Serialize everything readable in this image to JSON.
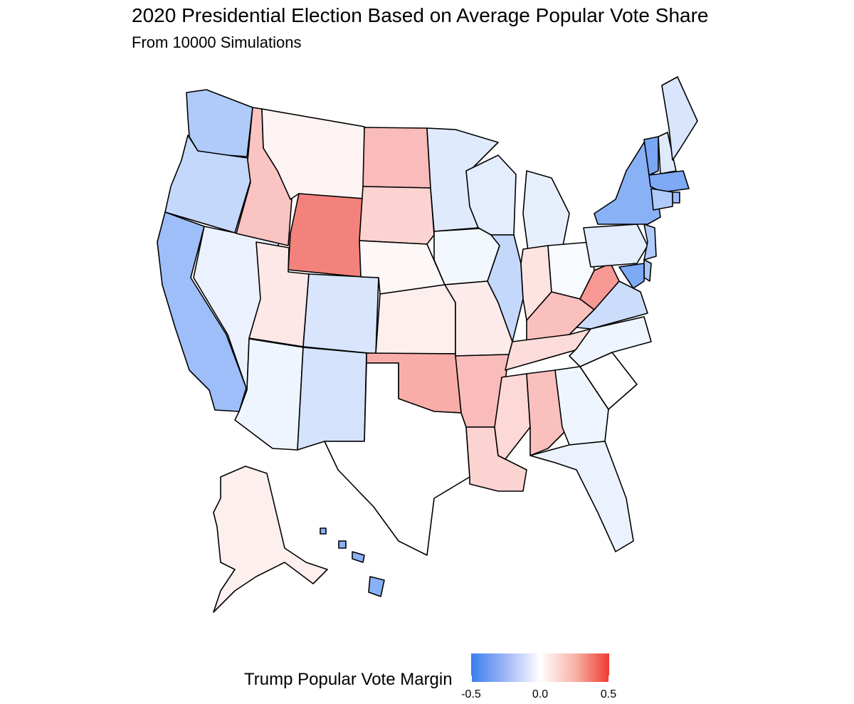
{
  "chart": {
    "title": "2020 Presidential Election Based on Average Popular Vote Share",
    "subtitle": "From 10000 Simulations"
  },
  "legend": {
    "title": "Trump Popular Vote Margin",
    "ticks": [
      "-0.5",
      "0.0",
      "0.5"
    ],
    "min_color": "#3a7df0",
    "mid_color": "#ffffff",
    "max_color": "#ee3b33"
  },
  "chart_data": {
    "type": "choropleth",
    "title": "2020 Presidential Election Based on Average Popular Vote Share",
    "subtitle": "From 10000 Simulations",
    "legend_title": "Trump Popular Vote Margin",
    "scale": {
      "min": -0.5,
      "mid": 0.0,
      "max": 0.5
    },
    "states": [
      {
        "state": "WA",
        "margin": -0.2
      },
      {
        "state": "OR",
        "margin": -0.15
      },
      {
        "state": "CA",
        "margin": -0.25
      },
      {
        "state": "NV",
        "margin": -0.05
      },
      {
        "state": "ID",
        "margin": 0.15
      },
      {
        "state": "MT",
        "margin": 0.03
      },
      {
        "state": "WY",
        "margin": 0.32
      },
      {
        "state": "UT",
        "margin": 0.06
      },
      {
        "state": "AZ",
        "margin": -0.04
      },
      {
        "state": "CO",
        "margin": -0.1
      },
      {
        "state": "NM",
        "margin": -0.11
      },
      {
        "state": "ND",
        "margin": 0.17
      },
      {
        "state": "SD",
        "margin": 0.11
      },
      {
        "state": "NE",
        "margin": 0.02
      },
      {
        "state": "KS",
        "margin": 0.04
      },
      {
        "state": "OK",
        "margin": 0.21
      },
      {
        "state": "TX",
        "margin": 0.0
      },
      {
        "state": "MN",
        "margin": -0.08
      },
      {
        "state": "IA",
        "margin": -0.03
      },
      {
        "state": "MO",
        "margin": 0.05
      },
      {
        "state": "AR",
        "margin": 0.17
      },
      {
        "state": "LA",
        "margin": 0.11
      },
      {
        "state": "WI",
        "margin": -0.07
      },
      {
        "state": "IL",
        "margin": -0.15
      },
      {
        "state": "MI",
        "margin": -0.06
      },
      {
        "state": "IN",
        "margin": 0.07
      },
      {
        "state": "OH",
        "margin": -0.02
      },
      {
        "state": "KY",
        "margin": 0.16
      },
      {
        "state": "TN",
        "margin": 0.09
      },
      {
        "state": "MS",
        "margin": 0.1
      },
      {
        "state": "AL",
        "margin": 0.16
      },
      {
        "state": "GA",
        "margin": -0.04
      },
      {
        "state": "FL",
        "margin": -0.05
      },
      {
        "state": "SC",
        "margin": 0.0
      },
      {
        "state": "NC",
        "margin": -0.04
      },
      {
        "state": "VA",
        "margin": -0.13
      },
      {
        "state": "WV",
        "margin": 0.26
      },
      {
        "state": "PA",
        "margin": -0.07
      },
      {
        "state": "NY",
        "margin": -0.3
      },
      {
        "state": "VT",
        "margin": -0.34
      },
      {
        "state": "NH",
        "margin": -0.08
      },
      {
        "state": "ME",
        "margin": -0.1
      },
      {
        "state": "MA",
        "margin": -0.33
      },
      {
        "state": "RI",
        "margin": -0.26
      },
      {
        "state": "CT",
        "margin": -0.2
      },
      {
        "state": "NJ",
        "margin": -0.2
      },
      {
        "state": "DE",
        "margin": -0.22
      },
      {
        "state": "MD",
        "margin": -0.33
      },
      {
        "state": "AK",
        "margin": 0.04
      },
      {
        "state": "HI",
        "margin": -0.3
      }
    ]
  }
}
